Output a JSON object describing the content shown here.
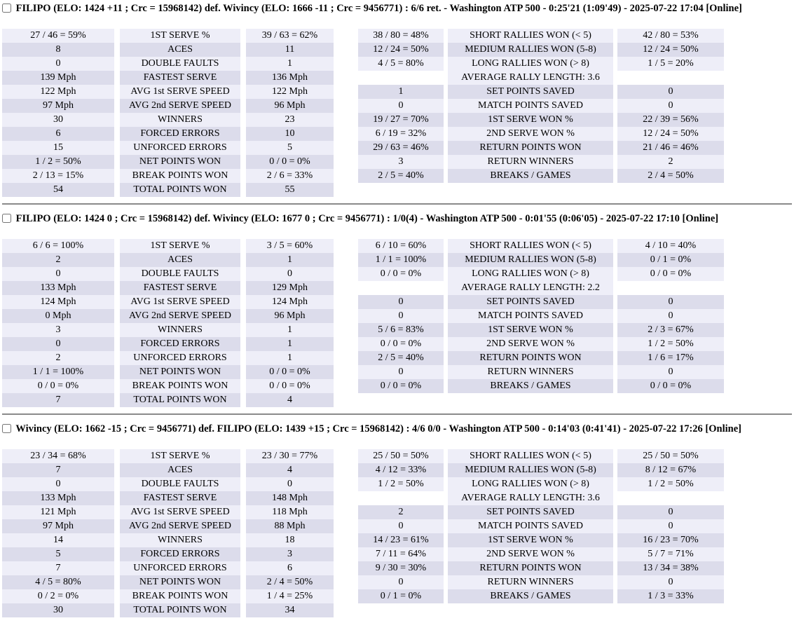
{
  "colors": {
    "row_light": "#EEEEF8",
    "row_dark": "#DCDCEB",
    "divider": "#8a8a8a",
    "page_background": "#ffffff"
  },
  "matches": [
    {
      "header": "FILIPO (ELO: 1424 +11 ; Crc = 15968142) def. Wivincy (ELO: 1666 -11 ; Crc = 9456771) : 6/6 ret. - Washington ATP 500 - 0:25'21 (1:09'49) - 2025-07-22 17:04 [Online]",
      "checkbox_checked": false,
      "serve_stats": [
        {
          "p1": "27 / 46 = 59%",
          "label": "1ST SERVE %",
          "p2": "39 / 63 = 62%"
        },
        {
          "p1": "8",
          "label": "ACES",
          "p2": "11"
        },
        {
          "p1": "0",
          "label": "DOUBLE FAULTS",
          "p2": "1"
        },
        {
          "p1": "139 Mph",
          "label": "FASTEST SERVE",
          "p2": "136 Mph"
        },
        {
          "p1": "122 Mph",
          "label": "AVG 1st SERVE SPEED",
          "p2": "122 Mph"
        },
        {
          "p1": "97 Mph",
          "label": "AVG 2nd SERVE SPEED",
          "p2": "96 Mph"
        },
        {
          "p1": "30",
          "label": "WINNERS",
          "p2": "23"
        },
        {
          "p1": "6",
          "label": "FORCED ERRORS",
          "p2": "10"
        },
        {
          "p1": "15",
          "label": "UNFORCED ERRORS",
          "p2": "5"
        },
        {
          "p1": "1 / 2 = 50%",
          "label": "NET POINTS WON",
          "p2": "0 / 0 = 0%"
        },
        {
          "p1": "2 / 13 = 15%",
          "label": "BREAK POINTS WON",
          "p2": "2 / 6 = 33%"
        },
        {
          "p1": "54",
          "label": "TOTAL POINTS WON",
          "p2": "55"
        }
      ],
      "rally_stats": [
        {
          "p1": "38 / 80 = 48%",
          "label": "SHORT RALLIES WON (< 5)",
          "p2": "42 / 80 = 53%"
        },
        {
          "p1": "12 / 24 = 50%",
          "label": "MEDIUM RALLIES WON (5-8)",
          "p2": "12 / 24 = 50%"
        },
        {
          "p1": "4 / 5 = 80%",
          "label": "LONG RALLIES WON (> 8)",
          "p2": "1 / 5 = 20%"
        },
        {
          "p1": "",
          "label": "AVERAGE RALLY LENGTH: 3.6",
          "p2": "",
          "special": true
        },
        {
          "p1": "1",
          "label": "SET POINTS SAVED",
          "p2": "0"
        },
        {
          "p1": "0",
          "label": "MATCH POINTS SAVED",
          "p2": "0"
        },
        {
          "p1": "19 / 27 = 70%",
          "label": "1ST SERVE WON %",
          "p2": "22 / 39 = 56%"
        },
        {
          "p1": "6 / 19 = 32%",
          "label": "2ND SERVE WON %",
          "p2": "12 / 24 = 50%"
        },
        {
          "p1": "29 / 63 = 46%",
          "label": "RETURN POINTS WON",
          "p2": "21 / 46 = 46%"
        },
        {
          "p1": "3",
          "label": "RETURN WINNERS",
          "p2": "2"
        },
        {
          "p1": "2 / 5 = 40%",
          "label": "BREAKS / GAMES",
          "p2": "2 / 4 = 50%"
        }
      ]
    },
    {
      "header": "FILIPO (ELO: 1424 0 ; Crc = 15968142) def. Wivincy (ELO: 1677 0 ; Crc = 9456771) : 1/0(4) - Washington ATP 500 - 0:01'55 (0:06'05) - 2025-07-22 17:10 [Online]",
      "checkbox_checked": false,
      "serve_stats": [
        {
          "p1": "6 / 6 = 100%",
          "label": "1ST SERVE %",
          "p2": "3 / 5 = 60%"
        },
        {
          "p1": "2",
          "label": "ACES",
          "p2": "1"
        },
        {
          "p1": "0",
          "label": "DOUBLE FAULTS",
          "p2": "0"
        },
        {
          "p1": "133 Mph",
          "label": "FASTEST SERVE",
          "p2": "129 Mph"
        },
        {
          "p1": "124 Mph",
          "label": "AVG 1st SERVE SPEED",
          "p2": "124 Mph"
        },
        {
          "p1": "0 Mph",
          "label": "AVG 2nd SERVE SPEED",
          "p2": "96 Mph"
        },
        {
          "p1": "3",
          "label": "WINNERS",
          "p2": "1"
        },
        {
          "p1": "0",
          "label": "FORCED ERRORS",
          "p2": "1"
        },
        {
          "p1": "2",
          "label": "UNFORCED ERRORS",
          "p2": "1"
        },
        {
          "p1": "1 / 1 = 100%",
          "label": "NET POINTS WON",
          "p2": "0 / 0 = 0%"
        },
        {
          "p1": "0 / 0 = 0%",
          "label": "BREAK POINTS WON",
          "p2": "0 / 0 = 0%"
        },
        {
          "p1": "7",
          "label": "TOTAL POINTS WON",
          "p2": "4"
        }
      ],
      "rally_stats": [
        {
          "p1": "6 / 10 = 60%",
          "label": "SHORT RALLIES WON (< 5)",
          "p2": "4 / 10 = 40%"
        },
        {
          "p1": "1 / 1 = 100%",
          "label": "MEDIUM RALLIES WON (5-8)",
          "p2": "0 / 1 = 0%"
        },
        {
          "p1": "0 / 0 = 0%",
          "label": "LONG RALLIES WON (> 8)",
          "p2": "0 / 0 = 0%"
        },
        {
          "p1": "",
          "label": "AVERAGE RALLY LENGTH: 2.2",
          "p2": "",
          "special": true
        },
        {
          "p1": "0",
          "label": "SET POINTS SAVED",
          "p2": "0"
        },
        {
          "p1": "0",
          "label": "MATCH POINTS SAVED",
          "p2": "0"
        },
        {
          "p1": "5 / 6 = 83%",
          "label": "1ST SERVE WON %",
          "p2": "2 / 3 = 67%"
        },
        {
          "p1": "0 / 0 = 0%",
          "label": "2ND SERVE WON %",
          "p2": "1 / 2 = 50%"
        },
        {
          "p1": "2 / 5 = 40%",
          "label": "RETURN POINTS WON",
          "p2": "1 / 6 = 17%"
        },
        {
          "p1": "0",
          "label": "RETURN WINNERS",
          "p2": "0"
        },
        {
          "p1": "0 / 0 = 0%",
          "label": "BREAKS / GAMES",
          "p2": "0 / 0 = 0%"
        }
      ]
    },
    {
      "header": "Wivincy (ELO: 1662 -15 ; Crc = 9456771) def. FILIPO (ELO: 1439 +15 ; Crc = 15968142) : 4/6 0/0 - Washington ATP 500 - 0:14'03 (0:41'41) - 2025-07-22 17:26 [Online]",
      "checkbox_checked": false,
      "serve_stats": [
        {
          "p1": "23 / 34 = 68%",
          "label": "1ST SERVE %",
          "p2": "23 / 30 = 77%"
        },
        {
          "p1": "7",
          "label": "ACES",
          "p2": "4"
        },
        {
          "p1": "0",
          "label": "DOUBLE FAULTS",
          "p2": "0"
        },
        {
          "p1": "133 Mph",
          "label": "FASTEST SERVE",
          "p2": "148 Mph"
        },
        {
          "p1": "121 Mph",
          "label": "AVG 1st SERVE SPEED",
          "p2": "118 Mph"
        },
        {
          "p1": "97 Mph",
          "label": "AVG 2nd SERVE SPEED",
          "p2": "88 Mph"
        },
        {
          "p1": "14",
          "label": "WINNERS",
          "p2": "18"
        },
        {
          "p1": "5",
          "label": "FORCED ERRORS",
          "p2": "3"
        },
        {
          "p1": "7",
          "label": "UNFORCED ERRORS",
          "p2": "6"
        },
        {
          "p1": "4 / 5 = 80%",
          "label": "NET POINTS WON",
          "p2": "2 / 4 = 50%"
        },
        {
          "p1": "0 / 2 = 0%",
          "label": "BREAK POINTS WON",
          "p2": "1 / 4 = 25%"
        },
        {
          "p1": "30",
          "label": "TOTAL POINTS WON",
          "p2": "34"
        }
      ],
      "rally_stats": [
        {
          "p1": "25 / 50 = 50%",
          "label": "SHORT RALLIES WON (< 5)",
          "p2": "25 / 50 = 50%"
        },
        {
          "p1": "4 / 12 = 33%",
          "label": "MEDIUM RALLIES WON (5-8)",
          "p2": "8 / 12 = 67%"
        },
        {
          "p1": "1 / 2 = 50%",
          "label": "LONG RALLIES WON (> 8)",
          "p2": "1 / 2 = 50%"
        },
        {
          "p1": "",
          "label": "AVERAGE RALLY LENGTH: 3.6",
          "p2": "",
          "special": true
        },
        {
          "p1": "2",
          "label": "SET POINTS SAVED",
          "p2": "0"
        },
        {
          "p1": "0",
          "label": "MATCH POINTS SAVED",
          "p2": "0"
        },
        {
          "p1": "14 / 23 = 61%",
          "label": "1ST SERVE WON %",
          "p2": "16 / 23 = 70%"
        },
        {
          "p1": "7 / 11 = 64%",
          "label": "2ND SERVE WON %",
          "p2": "5 / 7 = 71%"
        },
        {
          "p1": "9 / 30 = 30%",
          "label": "RETURN POINTS WON",
          "p2": "13 / 34 = 38%"
        },
        {
          "p1": "0",
          "label": "RETURN WINNERS",
          "p2": "0"
        },
        {
          "p1": "0 / 1 = 0%",
          "label": "BREAKS / GAMES",
          "p2": "1 / 3 = 33%"
        }
      ]
    }
  ]
}
